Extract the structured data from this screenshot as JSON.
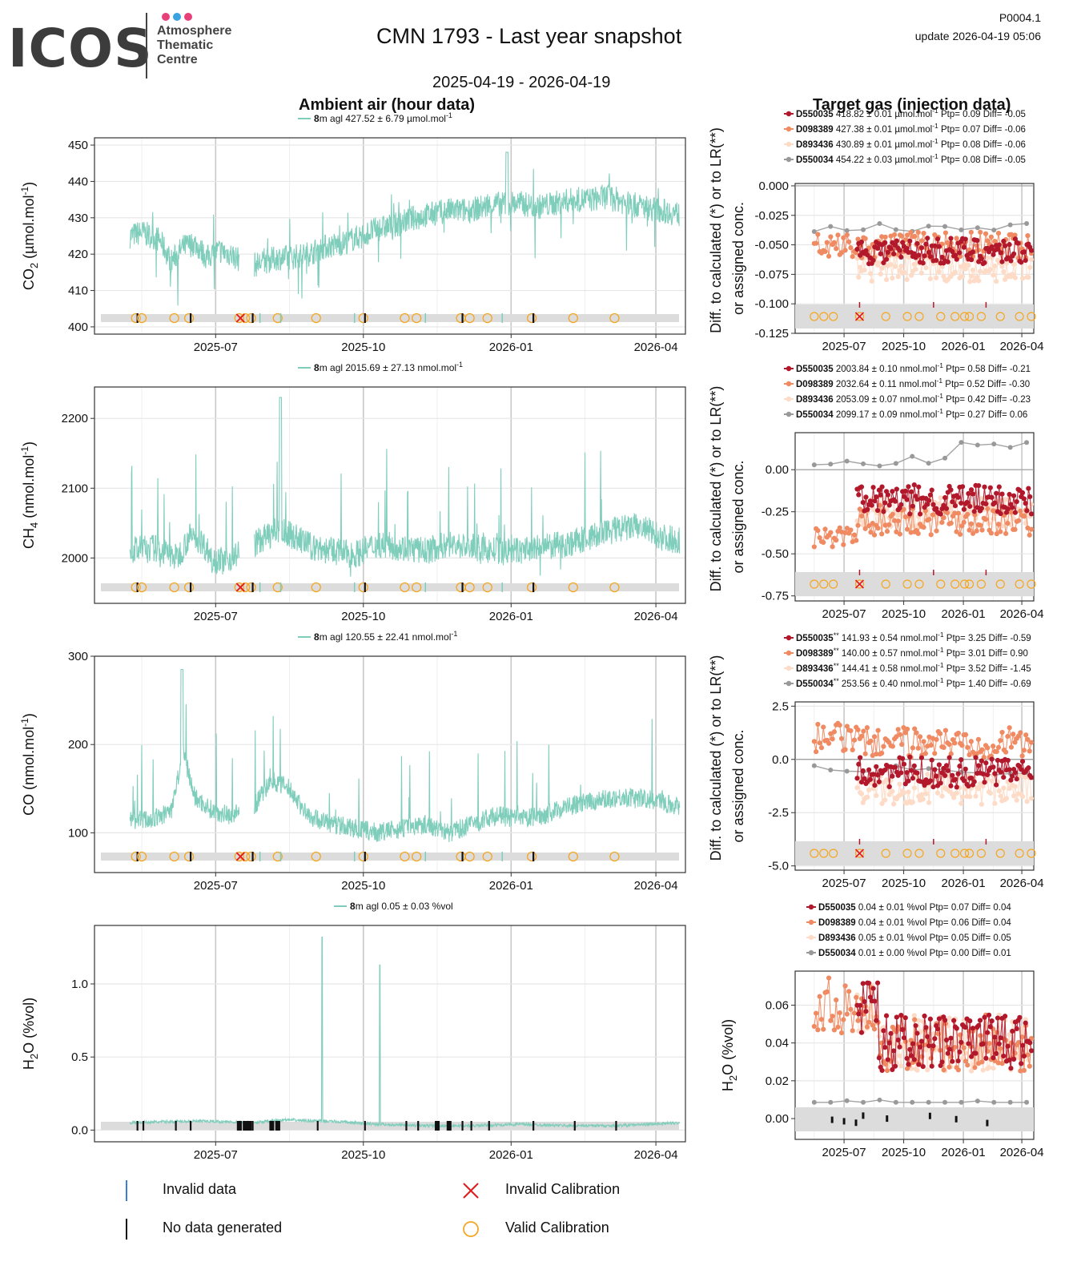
{
  "logo": {
    "text": "ICOS",
    "sub1": "Atmosphere",
    "sub2": "Thematic",
    "sub3": "Centre",
    "dot_colors": [
      "#e8407a",
      "#3aa3e0",
      "#e8407a"
    ]
  },
  "header": {
    "title": "CMN 1793 - Last year snapshot",
    "daterange": "2025-04-19 - 2026-04-19",
    "ref": "P0004.1",
    "update": "update  2026-04-19 05:06"
  },
  "columns": {
    "ambient": "Ambient air (hour data)",
    "target": "Target gas (injection data)"
  },
  "colors": {
    "ambient": "#7fcdbb",
    "D550035": "#b2182b",
    "D098389": "#ef8a62",
    "D893436": "#fddbc7",
    "D550034": "#999999",
    "calib": "#f5a623",
    "invalid_cal": "#e31a1c",
    "band": "#dcdcdc"
  },
  "x_ticks": [
    "2025-07",
    "2025-10",
    "2026-01",
    "2026-04"
  ],
  "calibration_x": [
    0.07,
    0.08,
    0.135,
    0.16,
    0.245,
    0.255,
    0.265,
    0.31,
    0.375,
    0.455,
    0.525,
    0.545,
    0.62,
    0.635,
    0.665,
    0.74,
    0.81,
    0.88
  ],
  "ambient_panels": [
    {
      "ylabel": "CO2 (µmol.mol-1)",
      "ylabel_main": "CO",
      "ylabel_sub": "2",
      "ylabel_unit": " (µmol.mol",
      "ylabel_sup": "-1",
      "ylabel_end": ")",
      "legend": "8m agl 427.52 ± 6.79 µmol.mol-1",
      "legend_bold": "8",
      "legend_rest": "m agl 427.52 ± 6.79 µmol.mol",
      "legend_sup": "-1",
      "yticks": [
        "400",
        "410",
        "420",
        "430",
        "440",
        "450"
      ]
    },
    {
      "ylabel": "CH4 (nmol.mol-1)",
      "ylabel_main": "CH",
      "ylabel_sub": "4",
      "ylabel_unit": " (nmol.mol",
      "ylabel_sup": "-1",
      "ylabel_end": ")",
      "legend": "8m agl 2015.69 ± 27.13 nmol.mol-1",
      "legend_bold": "8",
      "legend_rest": "m agl 2015.69 ± 27.13 nmol.mol",
      "legend_sup": "-1",
      "yticks": [
        "2000",
        "2100",
        "2200"
      ]
    },
    {
      "ylabel": "CO (nmol.mol-1)",
      "ylabel_main": "CO",
      "ylabel_sub": "",
      "ylabel_unit": " (nmol.mol",
      "ylabel_sup": "-1",
      "ylabel_end": ")",
      "legend": "8m agl 120.55 ± 22.41 nmol.mol-1",
      "legend_bold": "8",
      "legend_rest": "m agl 120.55 ± 22.41 nmol.mol",
      "legend_sup": "-1",
      "yticks": [
        "100",
        "200",
        "300"
      ]
    },
    {
      "ylabel": "H2O (%vol)",
      "ylabel_main": "H",
      "ylabel_sub": "2",
      "ylabel_unit": "O (%vol",
      "ylabel_sup": "",
      "ylabel_end": ")",
      "legend": "8m agl 0.05 ± 0.03 %vol",
      "legend_bold": "8",
      "legend_rest": "m agl 0.05 ± 0.03 %vol",
      "legend_sup": "",
      "yticks": [
        "0.0",
        "0.5",
        "1.0"
      ]
    }
  ],
  "target_panels": [
    {
      "ylabel1": "Diff. to calculated (*) or to LR(**)",
      "ylabel2": "or assigned conc.",
      "yticks": [
        "-0.125",
        "-0.100",
        "-0.075",
        "-0.050",
        "-0.025",
        "0.000"
      ],
      "legend": [
        {
          "name": "D550035",
          "mark": "",
          "text": " 418.82 ± 0.01 µmol.mol",
          "sup": "-1",
          "tail": " Ptp= 0.09 Diff= -0.05"
        },
        {
          "name": "D098389",
          "mark": "",
          "text": " 427.38 ± 0.01 µmol.mol",
          "sup": "-1",
          "tail": " Ptp= 0.07 Diff= -0.06"
        },
        {
          "name": "D893436",
          "mark": "",
          "text": " 430.89 ± 0.01 µmol.mol",
          "sup": "-1",
          "tail": " Ptp= 0.08 Diff= -0.06"
        },
        {
          "name": "D550034",
          "mark": "",
          "text": " 454.22 ± 0.03 µmol.mol",
          "sup": "-1",
          "tail": " Ptp= 0.08 Diff= -0.05"
        }
      ]
    },
    {
      "ylabel1": "Diff. to calculated (*) or to LR(**)",
      "ylabel2": "or assigned conc.",
      "yticks": [
        "-0.75",
        "-0.50",
        "-0.25",
        "0.00"
      ],
      "legend": [
        {
          "name": "D550035",
          "mark": "",
          "text": " 2003.84 ± 0.10 nmol.mol",
          "sup": "-1",
          "tail": " Ptp= 0.58 Diff= -0.21"
        },
        {
          "name": "D098389",
          "mark": "",
          "text": " 2032.64 ± 0.11 nmol.mol",
          "sup": "-1",
          "tail": " Ptp= 0.52 Diff= -0.30"
        },
        {
          "name": "D893436",
          "mark": "",
          "text": " 2053.09 ± 0.07 nmol.mol",
          "sup": "-1",
          "tail": " Ptp= 0.42 Diff= -0.23"
        },
        {
          "name": "D550034",
          "mark": "",
          "text": " 2099.17 ± 0.09 nmol.mol",
          "sup": "-1",
          "tail": " Ptp= 0.27 Diff= 0.06"
        }
      ]
    },
    {
      "ylabel1": "Diff. to calculated (*) or to LR(**)",
      "ylabel2": "or assigned conc.",
      "yticks": [
        "-5.0",
        "-2.5",
        "0.0",
        "2.5"
      ],
      "legend": [
        {
          "name": "D550035",
          "mark": "**",
          "text": " 141.93 ± 0.54 nmol.mol",
          "sup": "-1",
          "tail": " Ptp= 3.25 Diff= -0.59"
        },
        {
          "name": "D098389",
          "mark": "**",
          "text": " 140.00 ± 0.57 nmol.mol",
          "sup": "-1",
          "tail": " Ptp= 3.01 Diff= 0.90"
        },
        {
          "name": "D893436",
          "mark": "**",
          "text": " 144.41 ± 0.58 nmol.mol",
          "sup": "-1",
          "tail": " Ptp= 3.52 Diff= -1.45"
        },
        {
          "name": "D550034",
          "mark": "**",
          "text": " 253.56 ± 0.40 nmol.mol",
          "sup": "-1",
          "tail": " Ptp= 1.40 Diff= -0.69"
        }
      ]
    },
    {
      "ylabel_main": "H",
      "ylabel_sub": "2",
      "ylabel_unit": "O (%vol)",
      "yticks": [
        "0.00",
        "0.02",
        "0.04",
        "0.06"
      ],
      "legend": [
        {
          "name": "D550035",
          "mark": "",
          "text": " 0.04 ± 0.01 %vol Ptp= 0.07 Diff= 0.04",
          "sup": "",
          "tail": ""
        },
        {
          "name": "D098389",
          "mark": "",
          "text": " 0.04 ± 0.01 %vol Ptp= 0.06 Diff= 0.04",
          "sup": "",
          "tail": ""
        },
        {
          "name": "D893436",
          "mark": "",
          "text": " 0.05 ± 0.01 %vol Ptp= 0.05 Diff= 0.05",
          "sup": "",
          "tail": ""
        },
        {
          "name": "D550034",
          "mark": "",
          "text": " 0.01 ± 0.00 %vol Ptp= 0.00 Diff= 0.01",
          "sup": "",
          "tail": ""
        }
      ]
    }
  ],
  "bottom_legend": {
    "invalid_data": "Invalid data",
    "no_data": "No data generated",
    "invalid_cal": "Invalid Calibration",
    "valid_cal": "Valid Calibration"
  },
  "chart_data": [
    {
      "type": "line",
      "title": "Ambient air (hour data)",
      "series": [
        {
          "name": "8m agl",
          "values_summary": "427.52 ± 6.79"
        }
      ],
      "xlabel": "",
      "ylabel": "CO2 (µmol.mol-1)",
      "ylim": [
        398,
        452
      ],
      "x": [
        "2025-04-19",
        "2026-04-19"
      ],
      "shape": [
        [
          0.06,
          425
        ],
        [
          0.08,
          426
        ],
        [
          0.11,
          424
        ],
        [
          0.13,
          418
        ],
        [
          0.15,
          422
        ],
        [
          0.17,
          423
        ],
        [
          0.19,
          419
        ],
        [
          0.21,
          421
        ],
        [
          0.23,
          420
        ],
        [
          0.25,
          418
        ],
        [
          0.27,
          417
        ],
        [
          0.29,
          418
        ],
        [
          0.31,
          419
        ],
        [
          0.33,
          419
        ],
        [
          0.36,
          420
        ],
        [
          0.39,
          422
        ],
        [
          0.42,
          423
        ],
        [
          0.45,
          425
        ],
        [
          0.48,
          427
        ],
        [
          0.51,
          428
        ],
        [
          0.54,
          430
        ],
        [
          0.57,
          431
        ],
        [
          0.6,
          432
        ],
        [
          0.63,
          432
        ],
        [
          0.66,
          433
        ],
        [
          0.69,
          434
        ],
        [
          0.72,
          434
        ],
        [
          0.75,
          433
        ],
        [
          0.78,
          434
        ],
        [
          0.81,
          435
        ],
        [
          0.84,
          435
        ],
        [
          0.87,
          436
        ],
        [
          0.9,
          434
        ],
        [
          0.93,
          433
        ],
        [
          0.96,
          432
        ],
        [
          0.99,
          431
        ]
      ]
    },
    {
      "type": "line",
      "ylabel": "CH4 (nmol.mol-1)",
      "ylim": [
        1935,
        2245
      ],
      "series": [
        {
          "name": "8m agl",
          "values_summary": "2015.69 ± 27.13"
        }
      ],
      "shape": [
        [
          0.06,
          2010
        ],
        [
          0.1,
          2015
        ],
        [
          0.14,
          2000
        ],
        [
          0.16,
          2030
        ],
        [
          0.18,
          2025
        ],
        [
          0.2,
          2000
        ],
        [
          0.22,
          1995
        ],
        [
          0.25,
          2010
        ],
        [
          0.28,
          2025
        ],
        [
          0.31,
          2040
        ],
        [
          0.34,
          2030
        ],
        [
          0.37,
          2015
        ],
        [
          0.4,
          2010
        ],
        [
          0.44,
          2005
        ],
        [
          0.48,
          2020
        ],
        [
          0.52,
          2015
        ],
        [
          0.56,
          2010
        ],
        [
          0.6,
          2020
        ],
        [
          0.64,
          2015
        ],
        [
          0.68,
          2010
        ],
        [
          0.72,
          2010
        ],
        [
          0.76,
          2015
        ],
        [
          0.8,
          2020
        ],
        [
          0.84,
          2030
        ],
        [
          0.88,
          2040
        ],
        [
          0.92,
          2045
        ],
        [
          0.96,
          2030
        ],
        [
          0.99,
          2025
        ]
      ]
    },
    {
      "type": "line",
      "ylabel": "CO (nmol.mol-1)",
      "ylim": [
        55,
        300
      ],
      "series": [
        {
          "name": "8m agl",
          "values_summary": "120.55 ± 22.41"
        }
      ],
      "shape": [
        [
          0.06,
          115
        ],
        [
          0.1,
          115
        ],
        [
          0.13,
          125
        ],
        [
          0.15,
          190
        ],
        [
          0.17,
          140
        ],
        [
          0.2,
          125
        ],
        [
          0.23,
          120
        ],
        [
          0.27,
          130
        ],
        [
          0.3,
          160
        ],
        [
          0.33,
          150
        ],
        [
          0.36,
          120
        ],
        [
          0.4,
          110
        ],
        [
          0.44,
          105
        ],
        [
          0.48,
          100
        ],
        [
          0.52,
          105
        ],
        [
          0.56,
          110
        ],
        [
          0.6,
          100
        ],
        [
          0.64,
          110
        ],
        [
          0.68,
          120
        ],
        [
          0.72,
          115
        ],
        [
          0.76,
          120
        ],
        [
          0.8,
          130
        ],
        [
          0.84,
          135
        ],
        [
          0.88,
          140
        ],
        [
          0.92,
          140
        ],
        [
          0.96,
          135
        ],
        [
          0.99,
          130
        ]
      ]
    },
    {
      "type": "line",
      "ylabel": "H2O (%vol)",
      "ylim": [
        -0.08,
        1.4
      ],
      "series": [
        {
          "name": "8m agl",
          "values_summary": "0.05 ± 0.03"
        }
      ],
      "shape": [
        [
          0.06,
          0.05
        ],
        [
          0.15,
          0.06
        ],
        [
          0.2,
          0.06
        ],
        [
          0.27,
          0.05
        ],
        [
          0.32,
          0.07
        ],
        [
          0.4,
          0.06
        ],
        [
          0.48,
          0.04
        ],
        [
          0.56,
          0.03
        ],
        [
          0.64,
          0.03
        ],
        [
          0.72,
          0.04
        ],
        [
          0.8,
          0.03
        ],
        [
          0.88,
          0.03
        ],
        [
          0.94,
          0.04
        ],
        [
          0.99,
          0.05
        ]
      ],
      "spikes": [
        [
          0.385,
          1.32
        ],
        [
          0.483,
          1.13
        ]
      ]
    },
    {
      "type": "scatter",
      "title": "Target gas (injection data)",
      "ylim": [
        -0.125,
        0.002
      ],
      "series": [
        {
          "name": "D550035",
          "level": -0.055
        },
        {
          "name": "D098389",
          "level": -0.05
        },
        {
          "name": "D893436",
          "level": -0.07
        },
        {
          "name": "D550034",
          "level": -0.035
        }
      ]
    },
    {
      "type": "scatter",
      "ylim": [
        -0.78,
        0.22
      ],
      "series": [
        {
          "name": "D550035",
          "level": -0.18
        },
        {
          "name": "D098389",
          "level": -0.3
        },
        {
          "name": "D893436",
          "level": -0.25
        },
        {
          "name": "D550034",
          "level": 0.05
        }
      ]
    },
    {
      "type": "scatter",
      "ylim": [
        -5.2,
        2.7
      ],
      "series": [
        {
          "name": "D550035",
          "level": -0.6
        },
        {
          "name": "D098389",
          "level": 0.8
        },
        {
          "name": "D893436",
          "level": -1.4
        },
        {
          "name": "D550034",
          "level": -0.5
        }
      ]
    },
    {
      "type": "scatter",
      "ylim": [
        -0.011,
        0.078
      ],
      "series": [
        {
          "name": "D550035",
          "level": 0.045
        },
        {
          "name": "D098389",
          "level": 0.045
        },
        {
          "name": "D893436",
          "level": 0.05
        },
        {
          "name": "D550034",
          "level": 0.008
        }
      ]
    }
  ]
}
